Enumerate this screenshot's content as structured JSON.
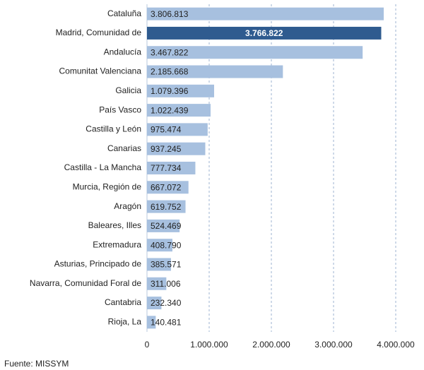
{
  "chart_data": {
    "type": "barh",
    "categories": [
      "Cataluña",
      "Madrid, Comunidad de",
      "Andalucía",
      "Comunitat Valenciana",
      "Galicia",
      "País Vasco",
      "Castilla y León",
      "Canarias",
      "Castilla - La Mancha",
      "Murcia, Región de",
      "Aragón",
      "Baleares, Illes",
      "Extremadura",
      "Asturias, Principado de",
      "Navarra, Comunidad Foral de",
      "Cantabria",
      "Rioja, La"
    ],
    "values": [
      3806813,
      3766822,
      3467822,
      2185668,
      1079396,
      1022439,
      975474,
      937245,
      777734,
      667072,
      619752,
      524469,
      408790,
      385571,
      311006,
      232340,
      140481
    ],
    "value_labels": [
      "3.806.813",
      "3.766.822",
      "3.467.822",
      "2.185.668",
      "1.079.396",
      "1.022.439",
      "975.474",
      "937.245",
      "777.734",
      "667.072",
      "619.752",
      "524.469",
      "408.790",
      "385.571",
      "311.006",
      "232.340",
      "140.481"
    ],
    "colors": [
      "#a7c0df",
      "#2f5b8f",
      "#a7c0df",
      "#a7c0df",
      "#a7c0df",
      "#a7c0df",
      "#a7c0df",
      "#a7c0df",
      "#a7c0df",
      "#a7c0df",
      "#a7c0df",
      "#a7c0df",
      "#a7c0df",
      "#a7c0df",
      "#a7c0df",
      "#a7c0df",
      "#a7c0df"
    ],
    "xlim": [
      0,
      4000000
    ],
    "xticks": [
      0,
      {
        "value": 1000000,
        "label": "1.000.000"
      },
      {
        "value": 2000000,
        "label": "2.000.000"
      },
      {
        "value": 3000000,
        "label": "3.000.000"
      },
      {
        "value": 4000000,
        "label": "4.000.000"
      }
    ],
    "grid": true,
    "source": "Fuente: MISSYM"
  }
}
